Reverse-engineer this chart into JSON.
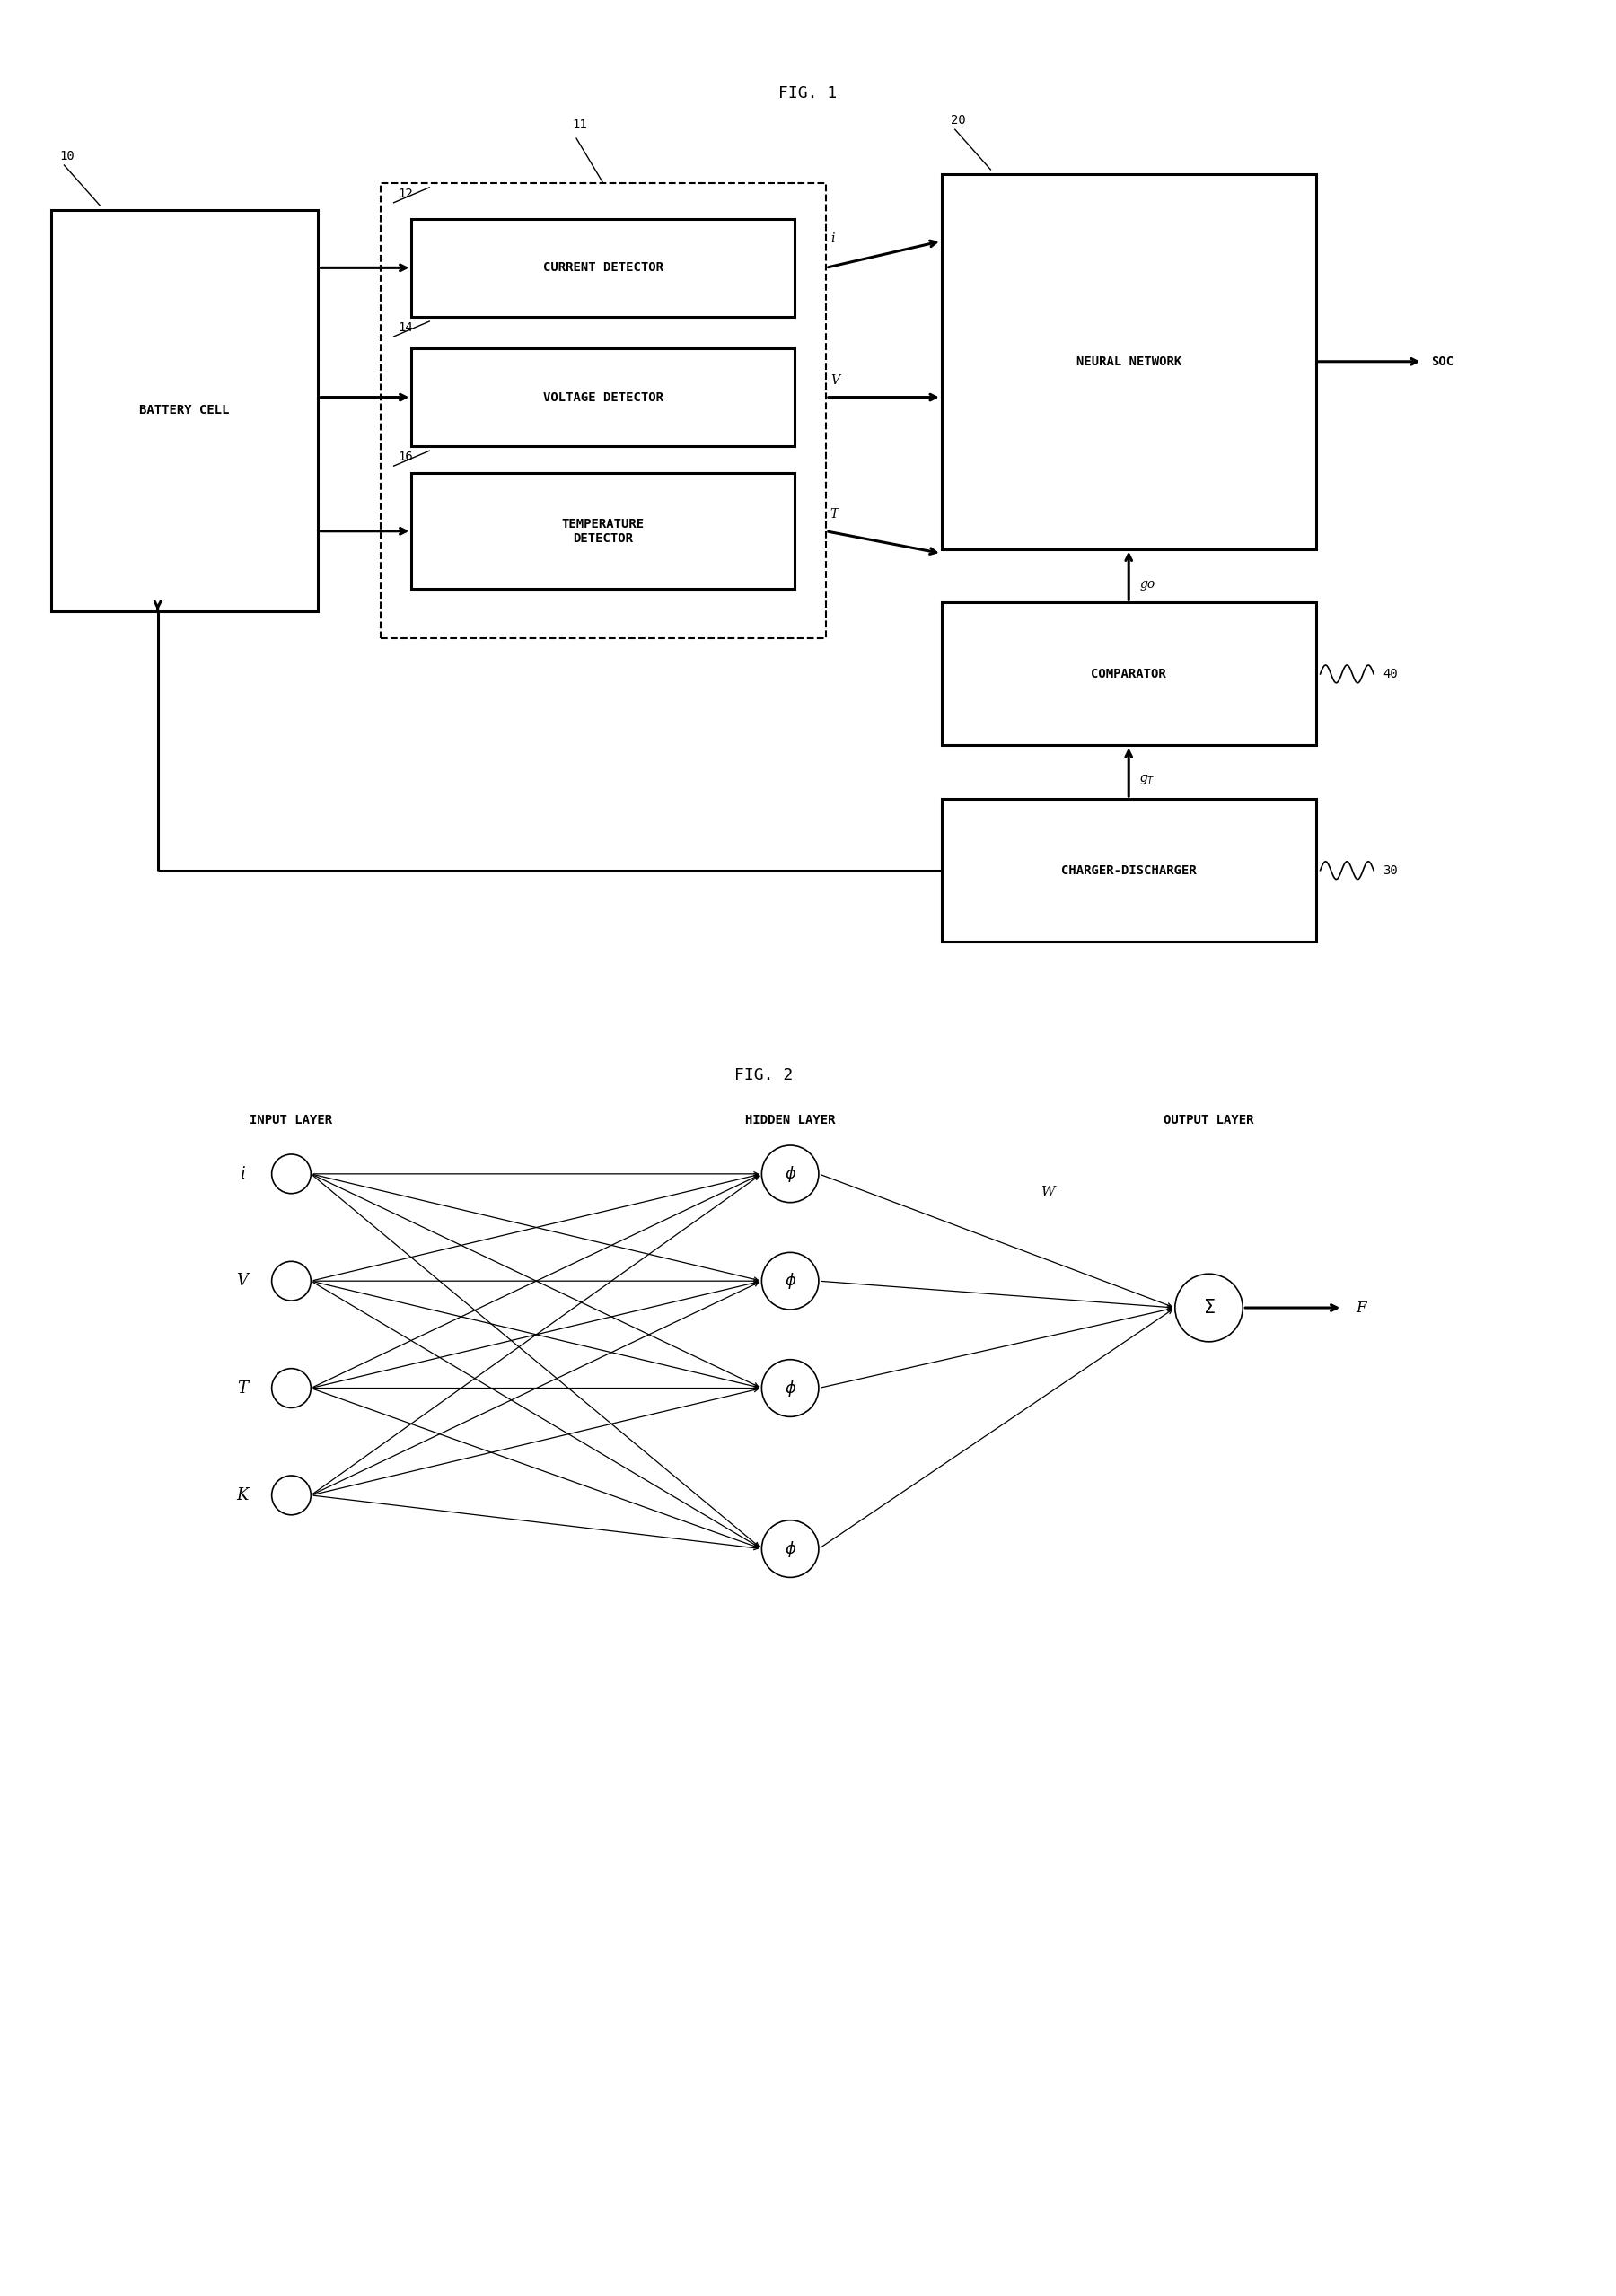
{
  "fig_width": 18.0,
  "fig_height": 25.58,
  "bg_color": "#ffffff",
  "fig1_title": "FIG. 1",
  "fig2_title": "FIG. 2",
  "labels": {
    "battery_cell": "BATTERY CELL",
    "current_detector": "CURRENT DETECTOR",
    "voltage_detector": "VOLTAGE DETECTOR",
    "temperature_detector": "TEMPERATURE\nDETECTOR",
    "neural_network": "NEURAL NETWORK",
    "comparator": "COMPARATOR",
    "charger_discharger": "CHARGER-DISCHARGER",
    "soc": "SOC",
    "go": "go",
    "i_label": "i",
    "v_label": "V",
    "t_label": "T",
    "ref10": "10",
    "ref11": "11",
    "ref12": "12",
    "ref14": "14",
    "ref16": "16",
    "ref20": "20",
    "ref30": "30",
    "ref40": "40"
  },
  "fig2_labels": {
    "input_layer": "INPUT LAYER",
    "hidden_layer": "HIDDEN LAYER",
    "output_layer": "OUTPUT LAYER",
    "i": "i",
    "v": "V",
    "t": "T",
    "k": "K",
    "w": "W",
    "f": "F"
  }
}
